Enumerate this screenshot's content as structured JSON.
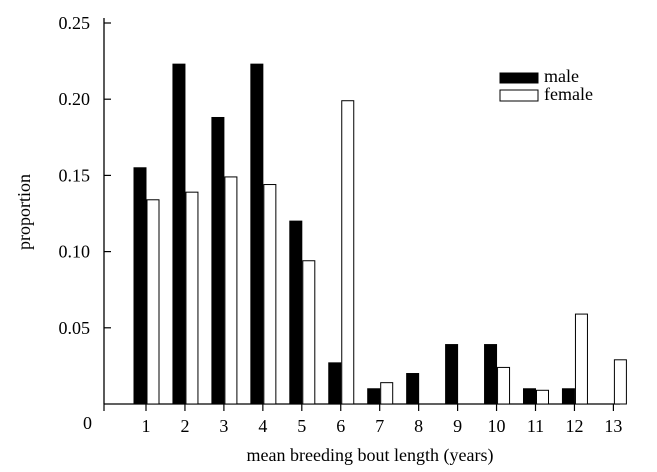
{
  "chart_data": {
    "type": "bar",
    "title": "",
    "xlabel": "mean breeding bout length (years)",
    "ylabel": "proportion",
    "categories": [
      "1",
      "2",
      "3",
      "4",
      "5",
      "6",
      "7",
      "8",
      "9",
      "10",
      "11",
      "12",
      "13"
    ],
    "series": [
      {
        "name": "male",
        "color": "#000000",
        "values": [
          0.155,
          0.223,
          0.188,
          0.223,
          0.12,
          0.027,
          0.01,
          0.02,
          0.039,
          0.039,
          0.01,
          0.01,
          0
        ]
      },
      {
        "name": "female",
        "color": "#ffffff",
        "values": [
          0.134,
          0.139,
          0.149,
          0.144,
          0.094,
          0.199,
          0.014,
          0,
          0,
          0.024,
          0.009,
          0.059,
          0.029
        ]
      }
    ],
    "ylim": [
      0,
      0.25
    ],
    "yticks": [
      "0",
      "0.05",
      "0.10",
      "0.15",
      "0.20",
      "0.25"
    ],
    "grid": false,
    "legend_position": "top-right"
  }
}
